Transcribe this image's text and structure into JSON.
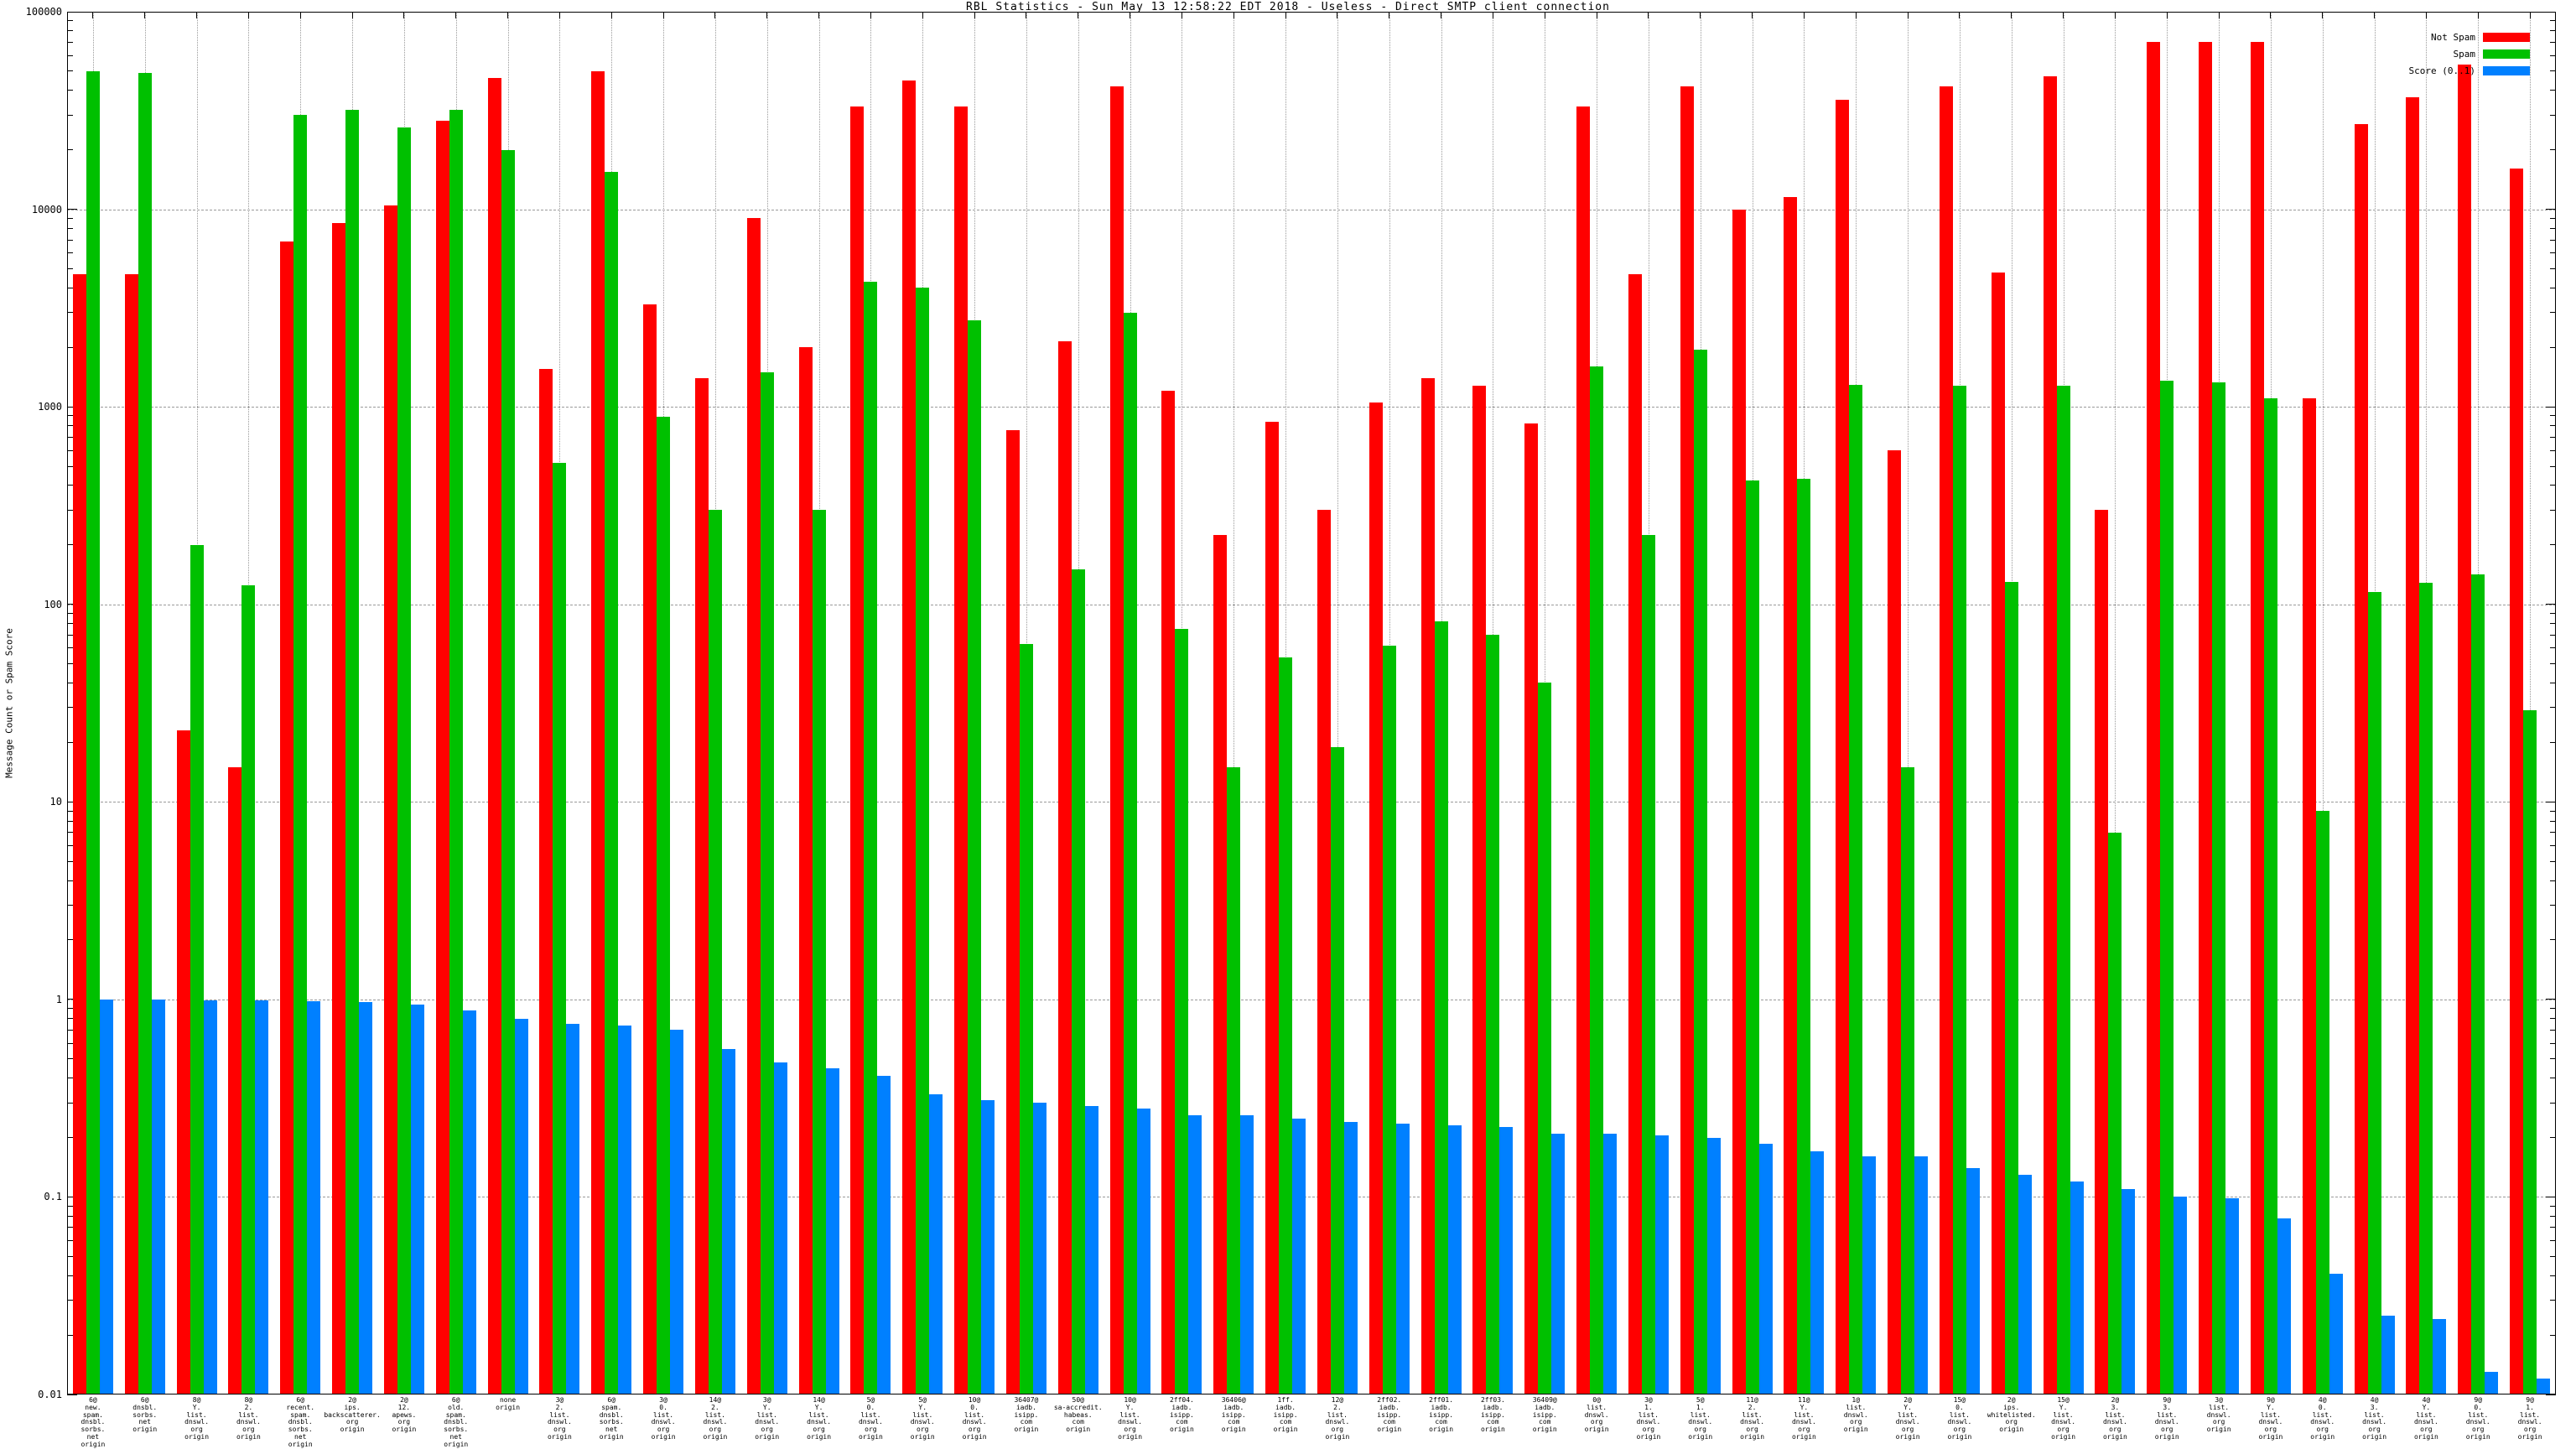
{
  "chart_data": {
    "type": "bar",
    "scale_y": "log",
    "title": "RBL Statistics - Sun May 13 12:58:22 EDT 2018 - Useless - Direct SMTP client connection",
    "ylabel": "Message Count or Spam Score",
    "ylim": [
      0.01,
      100000
    ],
    "ytick_values": [
      100000,
      10000,
      1000,
      100,
      10,
      1,
      0.1,
      0.01
    ],
    "ytick_labels": [
      "100000",
      "10000",
      "1000",
      "100",
      "10",
      "1",
      "0.1",
      "0.01"
    ],
    "grid": true,
    "legend_position": "top-right",
    "background": "#ffffff",
    "grid_color": "#9a9a9a",
    "series": [
      {
        "name": "Not Spam",
        "key": "not_spam",
        "color": "#ff0000"
      },
      {
        "name": "Spam",
        "key": "spam",
        "color": "#00c000"
      },
      {
        "name": "Score (0..1)",
        "key": "score",
        "color": "#0080ff"
      }
    ],
    "categories": [
      [
        "6@",
        "new.",
        "spam.",
        "dnsbl.",
        "sorbs.",
        "net",
        "origin"
      ],
      [
        "6@",
        "dnsbl.",
        "sorbs.",
        "net",
        "origin"
      ],
      [
        "8@",
        "Y.",
        "list.",
        "dnswl.",
        "org",
        "origin"
      ],
      [
        "8@",
        "2.",
        "list.",
        "dnswl.",
        "org",
        "origin"
      ],
      [
        "6@",
        "recent.",
        "spam.",
        "dnsbl.",
        "sorbs.",
        "net",
        "origin"
      ],
      [
        "2@",
        "ips.",
        "backscatterer.",
        "org",
        "origin"
      ],
      [
        "2@",
        "12.",
        "apews.",
        "org",
        "origin"
      ],
      [
        "6@",
        "old.",
        "spam.",
        "dnsbl.",
        "sorbs.",
        "net",
        "origin"
      ],
      [
        "none",
        "origin"
      ],
      [
        "3@",
        "2.",
        "list.",
        "dnswl.",
        "org",
        "origin"
      ],
      [
        "6@",
        "spam.",
        "dnsbl.",
        "sorbs.",
        "net",
        "origin"
      ],
      [
        "3@",
        "0.",
        "list.",
        "dnswl.",
        "org",
        "origin"
      ],
      [
        "14@",
        "2.",
        "list.",
        "dnswl.",
        "org",
        "origin"
      ],
      [
        "3@",
        "Y.",
        "list.",
        "dnswl.",
        "org",
        "origin"
      ],
      [
        "14@",
        "Y.",
        "list.",
        "dnswl.",
        "org",
        "origin"
      ],
      [
        "5@",
        "0.",
        "list.",
        "dnswl.",
        "org",
        "origin"
      ],
      [
        "5@",
        "Y.",
        "list.",
        "dnswl.",
        "org",
        "origin"
      ],
      [
        "10@",
        "0.",
        "list.",
        "dnswl.",
        "org",
        "origin"
      ],
      [
        "36407@",
        "iadb.",
        "isipp.",
        "com",
        "origin"
      ],
      [
        "50@",
        "sa-accredit.",
        "habeas.",
        "com",
        "origin"
      ],
      [
        "10@",
        "Y.",
        "list.",
        "dnswl.",
        "org",
        "origin"
      ],
      [
        "2ff04.",
        "iadb.",
        "isipp.",
        "com",
        "origin"
      ],
      [
        "36406@",
        "iadb.",
        "isipp.",
        "com",
        "origin"
      ],
      [
        "1ff.",
        "iadb.",
        "isipp.",
        "com",
        "origin"
      ],
      [
        "12@",
        "2.",
        "list.",
        "dnswl.",
        "org",
        "origin"
      ],
      [
        "2ff02.",
        "iadb.",
        "isipp.",
        "com",
        "origin"
      ],
      [
        "2ff01.",
        "iadb.",
        "isipp.",
        "com",
        "origin"
      ],
      [
        "2ff03.",
        "iadb.",
        "isipp.",
        "com",
        "origin"
      ],
      [
        "36409@",
        "iadb.",
        "isipp.",
        "com",
        "origin"
      ],
      [
        "0@",
        "list.",
        "dnswl.",
        "org",
        "origin"
      ],
      [
        "3@",
        "1.",
        "list.",
        "dnswl.",
        "org",
        "origin"
      ],
      [
        "5@",
        "1.",
        "list.",
        "dnswl.",
        "org",
        "origin"
      ],
      [
        "11@",
        "2.",
        "list.",
        "dnswl.",
        "org",
        "origin"
      ],
      [
        "11@",
        "Y.",
        "list.",
        "dnswl.",
        "org",
        "origin"
      ],
      [
        "1@",
        "list.",
        "dnswl.",
        "org",
        "origin"
      ],
      [
        "2@",
        "Y.",
        "list.",
        "dnswl.",
        "org",
        "origin"
      ],
      [
        "15@",
        "0.",
        "list.",
        "dnswl.",
        "org",
        "origin"
      ],
      [
        "2@",
        "ips.",
        "whitelisted.",
        "org",
        "origin"
      ],
      [
        "15@",
        "Y.",
        "list.",
        "dnswl.",
        "org",
        "origin"
      ],
      [
        "2@",
        "3.",
        "list.",
        "dnswl.",
        "org",
        "origin"
      ],
      [
        "9@",
        "3.",
        "list.",
        "dnswl.",
        "org",
        "origin"
      ],
      [
        "3@",
        "list.",
        "dnswl.",
        "org",
        "origin"
      ],
      [
        "9@",
        "Y.",
        "list.",
        "dnswl.",
        "org",
        "origin"
      ],
      [
        "4@",
        "0.",
        "list.",
        "dnswl.",
        "org",
        "origin"
      ],
      [
        "4@",
        "3.",
        "list.",
        "dnswl.",
        "org",
        "origin"
      ],
      [
        "4@",
        "Y.",
        "list.",
        "dnswl.",
        "org",
        "origin"
      ],
      [
        "9@",
        "0.",
        "list.",
        "dnswl.",
        "org",
        "origin"
      ],
      [
        "9@",
        "1.",
        "list.",
        "dnswl.",
        "org",
        "origin"
      ]
    ],
    "values": {
      "not_spam": [
        4700,
        4700,
        23,
        15,
        6900,
        8500,
        10500,
        28000,
        46000,
        1550,
        50000,
        3300,
        1400,
        9000,
        2000,
        33000,
        45000,
        33000,
        760,
        2150,
        42000,
        1200,
        225,
        840,
        300,
        1050,
        1400,
        1280,
        825,
        33000,
        4700,
        42000,
        10000,
        11500,
        36000,
        600,
        42000,
        4800,
        47000,
        300,
        70000,
        70000,
        70000,
        1100,
        27000,
        37000,
        54000,
        16000
      ],
      "spam": [
        50000,
        49000,
        200,
        125,
        30000,
        32000,
        26000,
        32000,
        20000,
        520,
        15500,
        890,
        300,
        1500,
        300,
        4300,
        4000,
        2750,
        63,
        150,
        3000,
        75,
        15,
        54,
        19,
        62,
        82,
        70,
        40,
        1600,
        225,
        1950,
        425,
        430,
        1290,
        15,
        1280,
        130,
        1280,
        7,
        1360,
        1330,
        1100,
        9,
        115,
        128,
        142,
        29
      ],
      "score": [
        1.0,
        1.0,
        0.99,
        0.99,
        0.98,
        0.97,
        0.94,
        0.88,
        0.8,
        0.75,
        0.74,
        0.7,
        0.56,
        0.48,
        0.45,
        0.41,
        0.33,
        0.31,
        0.3,
        0.29,
        0.28,
        0.26,
        0.26,
        0.25,
        0.24,
        0.235,
        0.23,
        0.225,
        0.21,
        0.21,
        0.205,
        0.2,
        0.185,
        0.17,
        0.16,
        0.16,
        0.14,
        0.13,
        0.12,
        0.11,
        0.1,
        0.098,
        0.078,
        0.041,
        0.025,
        0.024,
        0.013,
        0.012
      ]
    }
  }
}
